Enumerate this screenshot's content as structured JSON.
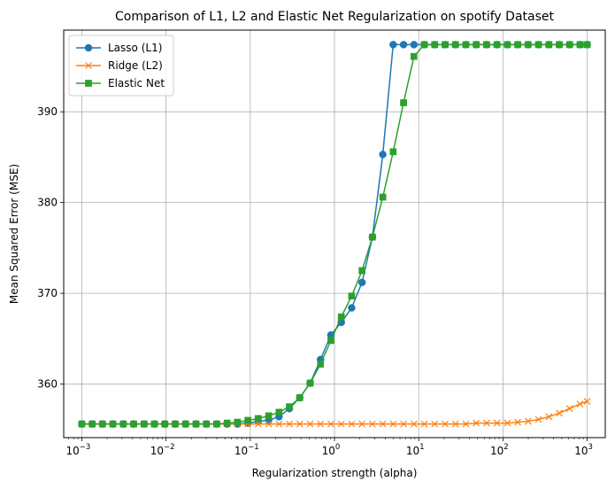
{
  "chart_data": {
    "type": "line",
    "title": "Comparison of L1, L2 and Elastic Net Regularization on spotify Dataset",
    "xlabel": "Regularization strength (alpha)",
    "ylabel": "Mean Squared Error (MSE)",
    "xscale": "log",
    "xlim": [
      0.00061,
      1640
    ],
    "ylim": [
      354.1,
      399.0
    ],
    "x_ticks": [
      {
        "value": 0.001,
        "base": "10",
        "exp": "−3"
      },
      {
        "value": 0.01,
        "base": "10",
        "exp": "−2"
      },
      {
        "value": 0.1,
        "base": "10",
        "exp": "−1"
      },
      {
        "value": 1,
        "base": "10",
        "exp": "0"
      },
      {
        "value": 10,
        "base": "10",
        "exp": "1"
      },
      {
        "value": 100,
        "base": "10",
        "exp": "2"
      },
      {
        "value": 1000,
        "base": "10",
        "exp": "3"
      }
    ],
    "y_ticks": [
      360,
      370,
      380,
      390
    ],
    "grid": true,
    "legend_position": "top-left",
    "x": [
      0.001,
      0.00133,
      0.00176,
      0.00234,
      0.00311,
      0.00413,
      0.00549,
      0.00729,
      0.00968,
      0.01285,
      0.01707,
      0.02268,
      0.03012,
      0.04,
      0.05313,
      0.07055,
      0.09371,
      0.12445,
      0.16529,
      0.21952,
      0.29151,
      0.3872,
      0.51414,
      0.6828,
      0.90685,
      1.2045,
      1.5996,
      2.1245,
      2.8215,
      3.7473,
      4.977,
      6.6097,
      8.7779,
      11.659,
      15.483,
      20.567,
      27.313,
      36.275,
      48.171,
      63.978,
      84.972,
      112.85,
      149.87,
      199.05,
      264.37,
      351.09,
      466.3,
      619.21,
      822.43,
      1000.0
    ],
    "series": [
      {
        "name": "Lasso (L1)",
        "color": "#1f77b4",
        "marker": "circle",
        "values": [
          355.6,
          355.6,
          355.6,
          355.6,
          355.6,
          355.6,
          355.6,
          355.6,
          355.6,
          355.6,
          355.6,
          355.6,
          355.6,
          355.6,
          355.6,
          355.6,
          355.7,
          355.9,
          356.0,
          356.4,
          357.3,
          358.5,
          360.1,
          362.7,
          365.4,
          366.8,
          368.4,
          371.2,
          376.2,
          385.3,
          397.4,
          397.4,
          397.4,
          397.4,
          397.4,
          397.4,
          397.4,
          397.4,
          397.4,
          397.4,
          397.4,
          397.4,
          397.4,
          397.4,
          397.4,
          397.4,
          397.4,
          397.4,
          397.4,
          397.4
        ]
      },
      {
        "name": "Ridge (L2)",
        "color": "#ff7f0e",
        "marker": "x",
        "values": [
          355.6,
          355.6,
          355.6,
          355.6,
          355.6,
          355.6,
          355.6,
          355.6,
          355.6,
          355.6,
          355.6,
          355.6,
          355.6,
          355.6,
          355.6,
          355.6,
          355.6,
          355.6,
          355.6,
          355.6,
          355.6,
          355.6,
          355.6,
          355.6,
          355.6,
          355.6,
          355.6,
          355.6,
          355.6,
          355.6,
          355.6,
          355.6,
          355.6,
          355.6,
          355.6,
          355.6,
          355.6,
          355.6,
          355.7,
          355.7,
          355.7,
          355.7,
          355.8,
          355.9,
          356.1,
          356.4,
          356.8,
          357.3,
          357.8,
          358.1
        ]
      },
      {
        "name": "Elastic Net",
        "color": "#2ca02c",
        "marker": "square",
        "values": [
          355.6,
          355.6,
          355.6,
          355.6,
          355.6,
          355.6,
          355.6,
          355.6,
          355.6,
          355.6,
          355.6,
          355.6,
          355.6,
          355.6,
          355.7,
          355.8,
          356.0,
          356.2,
          356.5,
          356.9,
          357.5,
          358.5,
          360.1,
          362.2,
          364.8,
          367.4,
          369.7,
          372.5,
          376.2,
          380.6,
          385.6,
          391.0,
          396.1,
          397.4,
          397.4,
          397.4,
          397.4,
          397.4,
          397.4,
          397.4,
          397.4,
          397.4,
          397.4,
          397.4,
          397.4,
          397.4,
          397.4,
          397.4,
          397.4,
          397.4
        ]
      }
    ]
  }
}
